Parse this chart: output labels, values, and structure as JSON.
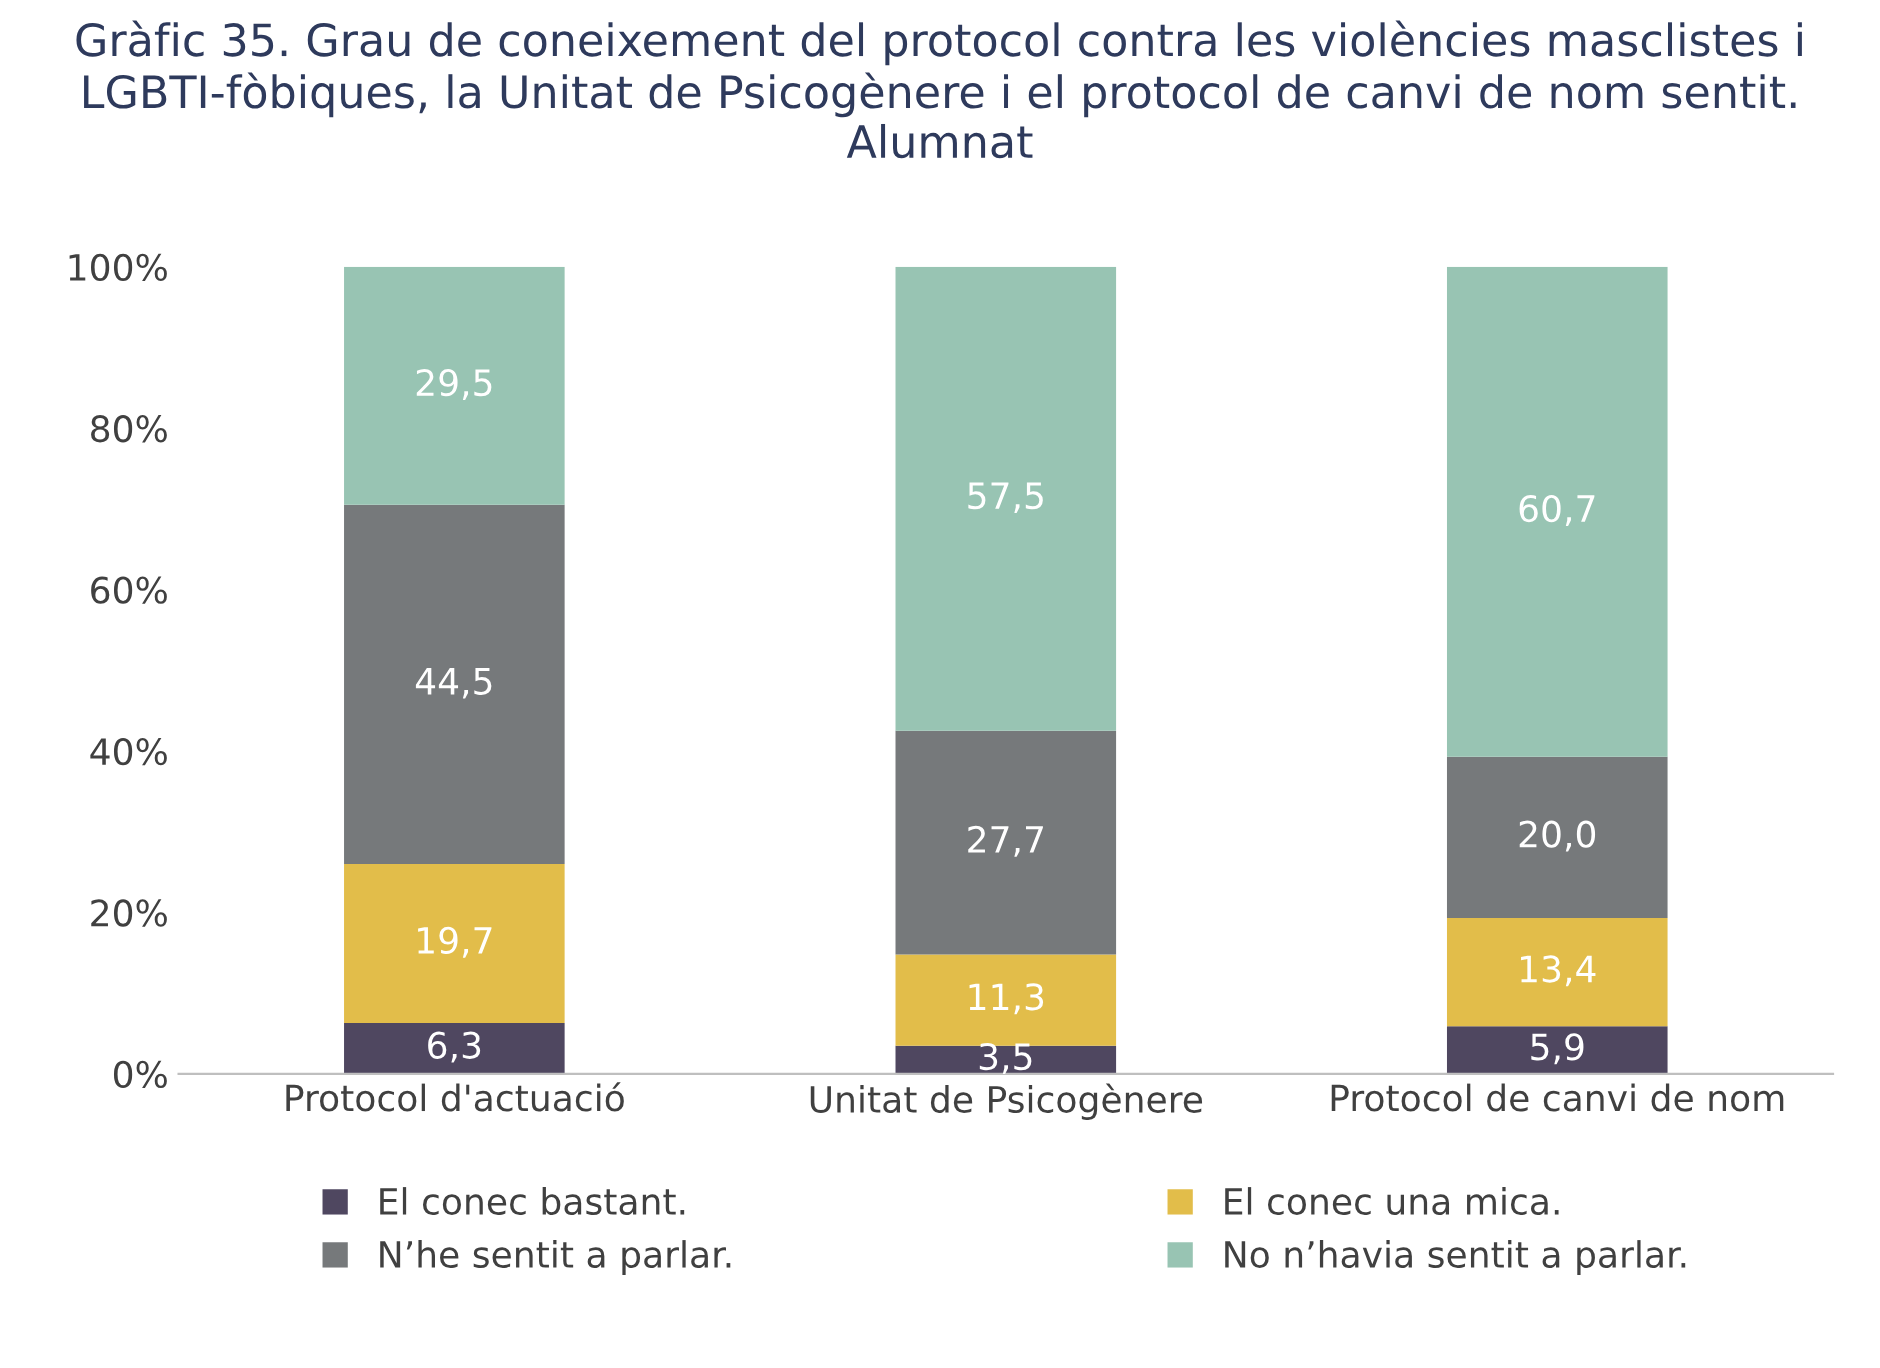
{
  "chart_data": {
    "type": "bar",
    "stacked": true,
    "title": "Gràfic 35. Grau de coneixement del protocol contra les violències masclistes i LGBTI-fòbiques, la Unitat de Psicogènere i el protocol de canvi de nom sentit. Alumnat",
    "categories": [
      "Protocol d'actuació",
      "Unitat de Psicogènere",
      "Protocol de canvi de nom"
    ],
    "series": [
      {
        "name": "El conec bastant.",
        "color": "#4f4760",
        "values": [
          6.3,
          3.5,
          5.9
        ],
        "value_labels": [
          "6,3",
          "3,5",
          "5,9"
        ]
      },
      {
        "name": "El conec una mica.",
        "color": "#e2bd4a",
        "values": [
          19.7,
          11.3,
          13.4
        ],
        "value_labels": [
          "19,7",
          "11,3",
          "13,4"
        ]
      },
      {
        "name": "N’he sentit a parlar.",
        "color": "#76797b",
        "values": [
          44.5,
          27.7,
          20.0
        ],
        "value_labels": [
          "44,5",
          "27,7",
          "20,0"
        ]
      },
      {
        "name": "No n’havia sentit a parlar.",
        "color": "#98c4b3",
        "values": [
          29.5,
          57.5,
          60.7
        ],
        "value_labels": [
          "29,5",
          "57,5",
          "60,7"
        ]
      }
    ],
    "ylim": [
      0,
      100
    ],
    "yticks": [
      {
        "value": 0,
        "label": "0%"
      },
      {
        "value": 20,
        "label": "20%"
      },
      {
        "value": 40,
        "label": "40%"
      },
      {
        "value": 60,
        "label": "60%"
      },
      {
        "value": 80,
        "label": "80%"
      },
      {
        "value": 100,
        "label": "100%"
      }
    ],
    "legend": "bottom",
    "grid": false
  }
}
